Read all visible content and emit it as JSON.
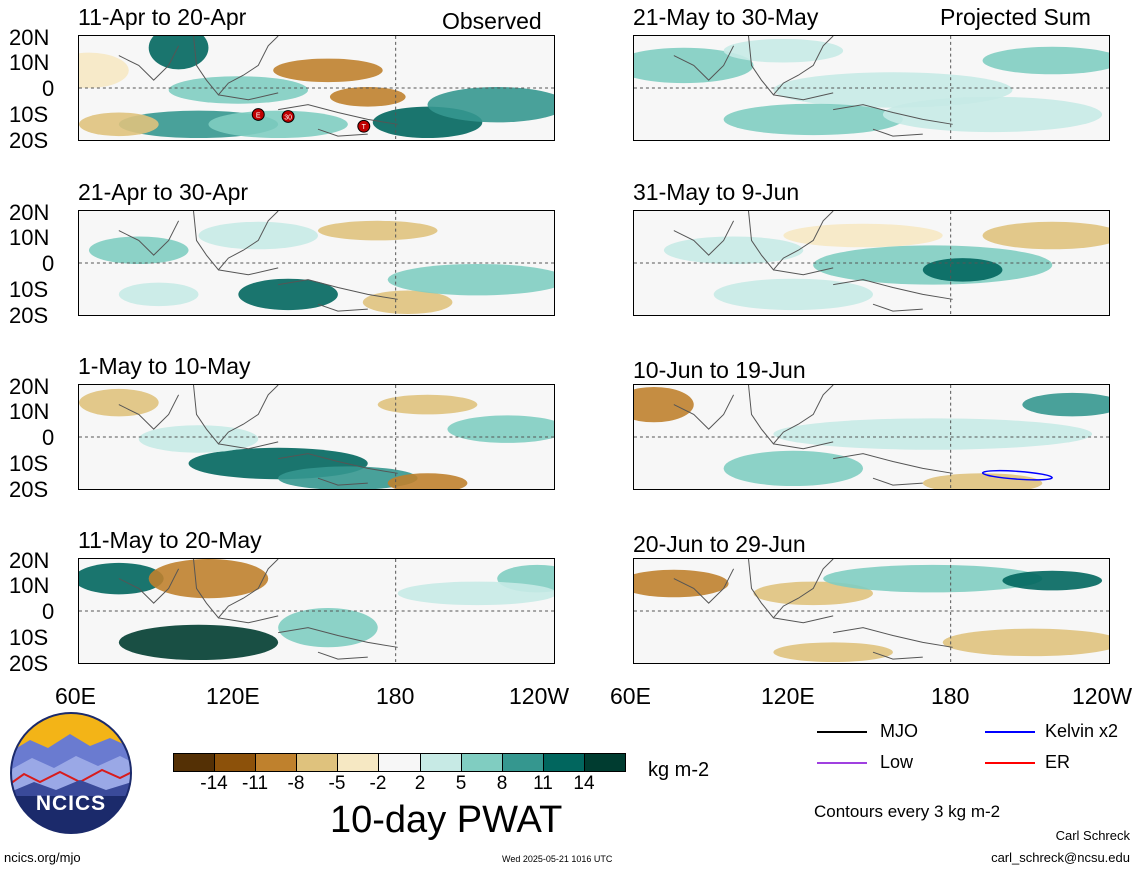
{
  "panels": [
    {
      "id": "p1",
      "title": "11-Apr to 20-Apr",
      "tag": "Observed"
    },
    {
      "id": "p2",
      "title": "21-May to 30-May",
      "tag": "Projected Sum"
    },
    {
      "id": "p3",
      "title": "21-Apr to 30-Apr",
      "tag": ""
    },
    {
      "id": "p4",
      "title": "31-May to 9-Jun",
      "tag": ""
    },
    {
      "id": "p5",
      "title": "1-May to 10-May",
      "tag": ""
    },
    {
      "id": "p6",
      "title": "10-Jun to 19-Jun",
      "tag": ""
    },
    {
      "id": "p7",
      "title": "11-May to 20-May",
      "tag": ""
    },
    {
      "id": "p8",
      "title": "20-Jun to 29-Jun",
      "tag": ""
    }
  ],
  "axes": {
    "lat_labels": [
      "20N",
      "10N",
      "0",
      "10S",
      "20S"
    ],
    "lon_labels": [
      "60E",
      "120E",
      "180",
      "120W"
    ]
  },
  "colorbar": {
    "ticks": [
      "-14",
      "-11",
      "-8",
      "-5",
      "-2",
      "2",
      "5",
      "8",
      "11",
      "14"
    ],
    "colors": [
      "#543005",
      "#8c510a",
      "#bf812d",
      "#dfc27d",
      "#f6e8c3",
      "#f7f7f7",
      "#c7eae5",
      "#80cdc1",
      "#35978f",
      "#01665e",
      "#003c30"
    ],
    "units": "kg m-2",
    "title": "10-day PWAT"
  },
  "legend": {
    "items": [
      {
        "label": "MJO",
        "color": "#000000"
      },
      {
        "label": "Kelvin x2",
        "color": "#0000ff"
      },
      {
        "label": "Low",
        "color": "#a040e0"
      },
      {
        "label": "ER",
        "color": "#ff0000"
      }
    ],
    "contour_note": "Contours every 3 kg m-2"
  },
  "storm_markers": [
    "E",
    "30",
    "T"
  ],
  "logo": {
    "text": "NCICS"
  },
  "footer": {
    "url": "ncics.org/mjo",
    "timestamp": "Wed 2025-05-21 1016 UTC",
    "author": "Carl Schreck",
    "email": "carl_schreck@ncsu.edu"
  }
}
